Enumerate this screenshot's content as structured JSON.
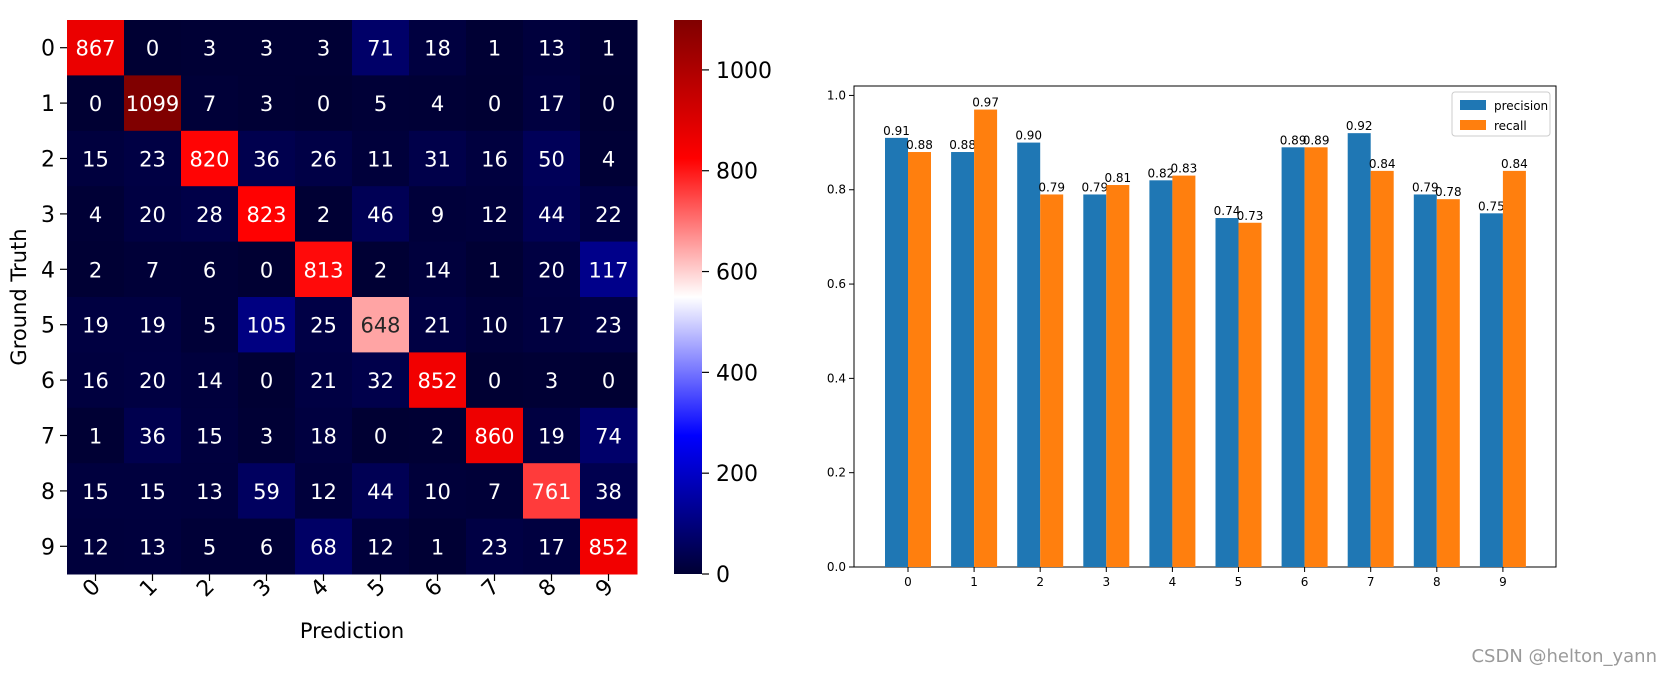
{
  "chart_data": [
    {
      "type": "heatmap",
      "title": "",
      "xlabel": "Prediction",
      "ylabel": "Ground Truth",
      "x_tick_labels": [
        "0",
        "1",
        "2",
        "3",
        "4",
        "5",
        "6",
        "7",
        "8",
        "9"
      ],
      "y_tick_labels": [
        "0",
        "1",
        "2",
        "3",
        "4",
        "5",
        "6",
        "7",
        "8",
        "9"
      ],
      "matrix": [
        [
          867,
          0,
          3,
          3,
          3,
          71,
          18,
          1,
          13,
          1
        ],
        [
          0,
          1099,
          7,
          3,
          0,
          5,
          4,
          0,
          17,
          0
        ],
        [
          15,
          23,
          820,
          36,
          26,
          11,
          31,
          16,
          50,
          4
        ],
        [
          4,
          20,
          28,
          823,
          2,
          46,
          9,
          12,
          44,
          22
        ],
        [
          2,
          7,
          6,
          0,
          813,
          2,
          14,
          1,
          20,
          117
        ],
        [
          19,
          19,
          5,
          105,
          25,
          648,
          21,
          10,
          17,
          23
        ],
        [
          16,
          20,
          14,
          0,
          21,
          32,
          852,
          0,
          3,
          0
        ],
        [
          1,
          36,
          15,
          3,
          18,
          0,
          2,
          860,
          19,
          74
        ],
        [
          15,
          15,
          13,
          59,
          12,
          44,
          10,
          7,
          761,
          38
        ],
        [
          12,
          13,
          5,
          6,
          68,
          12,
          1,
          23,
          17,
          852
        ]
      ],
      "colormap": "seismic",
      "vmin": 0,
      "vmax": 1099,
      "colorbar_ticks": [
        0,
        200,
        400,
        600,
        800,
        1000
      ]
    },
    {
      "type": "bar",
      "title": "",
      "xlabel": "",
      "ylabel": "",
      "categories": [
        "0",
        "1",
        "2",
        "3",
        "4",
        "5",
        "6",
        "7",
        "8",
        "9"
      ],
      "series": [
        {
          "name": "precision",
          "color": "#1f77b4",
          "values": [
            0.91,
            0.88,
            0.9,
            0.79,
            0.82,
            0.74,
            0.89,
            0.92,
            0.79,
            0.75
          ]
        },
        {
          "name": "recall",
          "color": "#ff7f0e",
          "values": [
            0.88,
            0.97,
            0.79,
            0.81,
            0.83,
            0.73,
            0.89,
            0.84,
            0.78,
            0.84
          ]
        }
      ],
      "ylim": [
        0,
        1.02
      ],
      "yticks": [
        0.0,
        0.2,
        0.4,
        0.6,
        0.8,
        1.0
      ],
      "legend_position": "top-right"
    }
  ],
  "watermark": "CSDN @helton_yann"
}
